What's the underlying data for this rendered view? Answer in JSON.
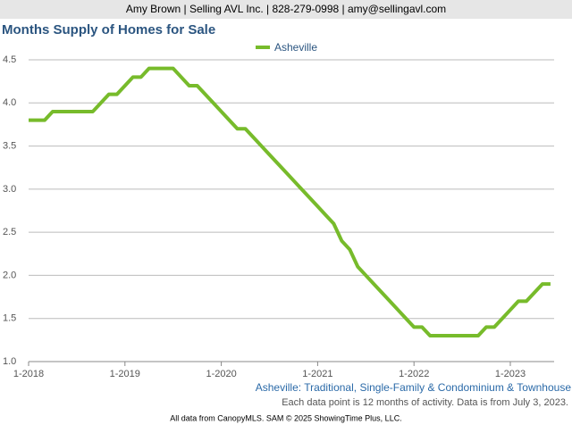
{
  "header": "Amy Brown | Selling AVL Inc. | 828-279-0998 | amy@sellingavl.com",
  "chart_data": {
    "type": "line",
    "title": "Months Supply of Homes for Sale",
    "categories": [
      "1-2018",
      null,
      null,
      null,
      null,
      null,
      null,
      null,
      null,
      null,
      null,
      null,
      "1-2019",
      null,
      null,
      null,
      null,
      null,
      null,
      null,
      null,
      null,
      null,
      null,
      "1-2020",
      null,
      null,
      null,
      null,
      null,
      null,
      null,
      null,
      null,
      null,
      null,
      "1-2021",
      null,
      null,
      null,
      null,
      null,
      null,
      null,
      null,
      null,
      null,
      null,
      "1-2022",
      null,
      null,
      null,
      null,
      null,
      null,
      null,
      null,
      null,
      null,
      null,
      "1-2023",
      null,
      null,
      null,
      null,
      null
    ],
    "series": [
      {
        "name": "Asheville",
        "color": "#77bb2b",
        "values": [
          3.8,
          3.8,
          3.8,
          3.9,
          3.9,
          3.9,
          3.9,
          3.9,
          3.9,
          4.0,
          4.1,
          4.1,
          4.2,
          4.3,
          4.3,
          4.4,
          4.4,
          4.4,
          4.4,
          4.3,
          4.2,
          4.2,
          4.1,
          4.0,
          3.9,
          3.8,
          3.7,
          3.7,
          3.6,
          3.5,
          3.4,
          3.3,
          3.2,
          3.1,
          3.0,
          2.9,
          2.8,
          2.7,
          2.6,
          2.4,
          2.3,
          2.1,
          2.0,
          1.9,
          1.8,
          1.7,
          1.6,
          1.5,
          1.4,
          1.4,
          1.3,
          1.3,
          1.3,
          1.3,
          1.3,
          1.3,
          1.3,
          1.4,
          1.4,
          1.5,
          1.6,
          1.7,
          1.7,
          1.8,
          1.9,
          1.9
        ]
      }
    ],
    "ylim": [
      1.0,
      4.5
    ],
    "yticks": [
      {
        "value": 1.0,
        "label": "1.0"
      },
      {
        "value": 1.5,
        "label": "1.5"
      },
      {
        "value": 2.0,
        "label": "2.0"
      },
      {
        "value": 2.5,
        "label": "2.5"
      },
      {
        "value": 3.0,
        "label": "3.0"
      },
      {
        "value": 3.5,
        "label": "3.5"
      },
      {
        "value": 4.0,
        "label": "4.0"
      },
      {
        "value": 4.5,
        "label": "4.5"
      }
    ],
    "grid": true,
    "subtitle": "Asheville: Traditional, Single-Family & Condominium & Townhouse",
    "note": "Each data point is 12 months of activity. Data is from July 3, 2023."
  },
  "footer": "All data from CanopyMLS. SAM © 2025 ShowingTime Plus, LLC."
}
